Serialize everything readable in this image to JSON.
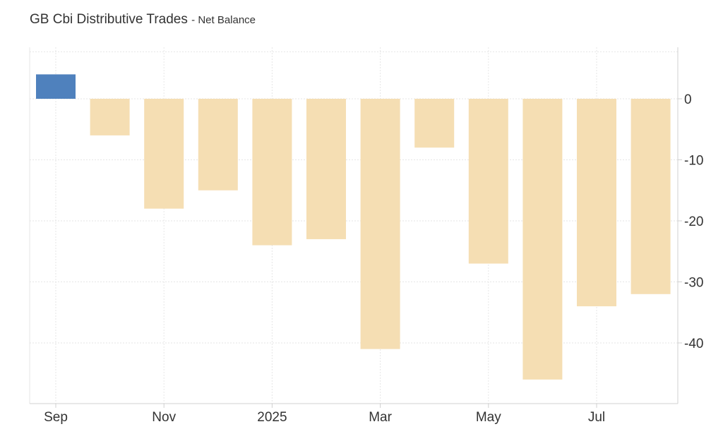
{
  "chart_data": {
    "type": "bar",
    "title": "GB Cbi Distributive Trades",
    "subtitle": "Net Balance",
    "categories": [
      "Sep 2024",
      "Oct 2024",
      "Nov 2024",
      "Dec 2024",
      "Jan 2025",
      "Feb 2025",
      "Mar 2025",
      "Apr 2025",
      "May 2025",
      "Jun 2025",
      "Jul 2025",
      "Aug 2025"
    ],
    "values": [
      4,
      -6,
      -18,
      -15,
      -24,
      -23,
      -41,
      -8,
      -27,
      -46,
      -34,
      -32
    ],
    "x_tick_labels": [
      "Sep",
      "Nov",
      "2025",
      "Mar",
      "May",
      "Jul"
    ],
    "y_ticks": [
      0,
      -10,
      -20,
      -30,
      -40
    ],
    "ylim": [
      -50,
      8
    ],
    "grid": true,
    "colors": {
      "positive": "#4f81bd",
      "negative": "#f5deb3"
    }
  }
}
